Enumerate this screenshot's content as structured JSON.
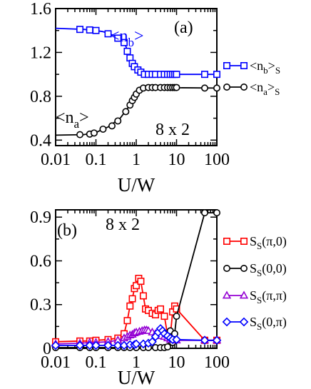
{
  "chart_data": [
    {
      "type": "line",
      "panel_label": "(a)",
      "annotation": "8 x 2",
      "inline_labels": [
        {
          "series": "nb",
          "text": "<n",
          "sub": "b",
          "tail": ">",
          "color": "#0000ff"
        },
        {
          "series": "na",
          "text": "<n",
          "sub": "a",
          "tail": ">",
          "color": "#000000"
        }
      ],
      "xlabel": "U/W",
      "xscale": "log",
      "xlim": [
        0.01,
        100
      ],
      "ylim": [
        0.35,
        1.6
      ],
      "xticks": [
        0.01,
        0.1,
        1,
        10,
        100
      ],
      "xtick_labels": [
        "0.01",
        "0.1",
        "1",
        "10",
        "100"
      ],
      "yticks": [
        0.4,
        0.8,
        1.2,
        1.6
      ],
      "ytick_labels": [
        "0.4",
        "0.8",
        "1.2",
        "1.6"
      ],
      "legend_placement": "outside-right",
      "series": [
        {
          "key": "nb",
          "name": "<n",
          "name_sub": "b",
          "name_tail": ">",
          "name_sub2": "S",
          "color": "#0000ff",
          "marker": "square",
          "marker_fill": "none",
          "line": [
            [
              0.01,
              1.42
            ],
            [
              0.05,
              1.41
            ],
            [
              0.08,
              1.405
            ],
            [
              0.15,
              1.39
            ],
            [
              0.3,
              1.35
            ],
            [
              0.5,
              1.29
            ],
            [
              0.7,
              1.17
            ],
            [
              1.0,
              1.06
            ],
            [
              1.5,
              1.01
            ],
            [
              3,
              1.0
            ],
            [
              100,
              1.0
            ]
          ],
          "markers": [
            [
              0.04,
              1.41
            ],
            [
              0.07,
              1.405
            ],
            [
              0.1,
              1.4
            ],
            [
              0.2,
              1.37
            ],
            [
              0.35,
              1.33
            ],
            [
              0.5,
              1.29
            ],
            [
              0.6,
              1.21
            ],
            [
              0.7,
              1.15
            ],
            [
              0.8,
              1.1
            ],
            [
              0.9,
              1.07
            ],
            [
              1.1,
              1.04
            ],
            [
              1.3,
              1.02
            ],
            [
              1.6,
              1.0
            ],
            [
              2.0,
              1.0
            ],
            [
              2.5,
              1.0
            ],
            [
              3.0,
              1.0
            ],
            [
              4.0,
              1.0
            ],
            [
              5.0,
              1.0
            ],
            [
              6.0,
              1.0
            ],
            [
              7.0,
              1.0
            ],
            [
              8.0,
              1.0
            ],
            [
              9.0,
              1.0
            ],
            [
              10,
              1.0
            ],
            [
              50,
              1.0
            ],
            [
              100,
              1.0
            ]
          ]
        },
        {
          "key": "na",
          "name": "<n",
          "name_sub": "a",
          "name_tail": ">",
          "name_sub2": "S",
          "color": "#000000",
          "marker": "circle",
          "marker_fill": "none",
          "line": [
            [
              0.01,
              0.445
            ],
            [
              0.05,
              0.45
            ],
            [
              0.1,
              0.47
            ],
            [
              0.2,
              0.52
            ],
            [
              0.4,
              0.6
            ],
            [
              0.7,
              0.72
            ],
            [
              1.0,
              0.82
            ],
            [
              1.5,
              0.87
            ],
            [
              2.5,
              0.88
            ],
            [
              100,
              0.875
            ]
          ],
          "markers": [
            [
              0.04,
              0.45
            ],
            [
              0.07,
              0.455
            ],
            [
              0.09,
              0.465
            ],
            [
              0.15,
              0.5
            ],
            [
              0.25,
              0.53
            ],
            [
              0.35,
              0.575
            ],
            [
              0.55,
              0.66
            ],
            [
              0.7,
              0.72
            ],
            [
              0.8,
              0.76
            ],
            [
              0.9,
              0.79
            ],
            [
              1.0,
              0.82
            ],
            [
              1.2,
              0.855
            ],
            [
              1.5,
              0.875
            ],
            [
              2.0,
              0.88
            ],
            [
              2.5,
              0.88
            ],
            [
              3.0,
              0.88
            ],
            [
              4.0,
              0.88
            ],
            [
              5.0,
              0.88
            ],
            [
              6.0,
              0.88
            ],
            [
              7.0,
              0.88
            ],
            [
              8.0,
              0.88
            ],
            [
              9.0,
              0.88
            ],
            [
              10,
              0.88
            ],
            [
              50,
              0.875
            ],
            [
              100,
              0.875
            ]
          ]
        }
      ]
    },
    {
      "type": "line",
      "panel_label": "(b)",
      "annotation": "8 x 2",
      "xlabel": "U/W",
      "xscale": "log",
      "xlim": [
        0.01,
        100
      ],
      "ylim": [
        0,
        0.95
      ],
      "xticks": [
        0.01,
        0.1,
        1,
        10,
        100
      ],
      "xtick_labels": [
        "0.01",
        "0.1",
        "1",
        "10",
        "100"
      ],
      "yticks": [
        0,
        0.3,
        0.6,
        0.9
      ],
      "ytick_labels": [
        "0",
        "0.3",
        "0.6",
        "0.9"
      ],
      "legend_placement": "outside-right",
      "series": [
        {
          "key": "s_pi0",
          "name": "S",
          "name_sub": "S",
          "name_tail": "(π,0)",
          "color": "#ff0000",
          "marker": "square",
          "marker_fill": "none",
          "points": [
            [
              0.01,
              0.045
            ],
            [
              0.04,
              0.05
            ],
            [
              0.07,
              0.05
            ],
            [
              0.1,
              0.055
            ],
            [
              0.2,
              0.06
            ],
            [
              0.35,
              0.07
            ],
            [
              0.5,
              0.1
            ],
            [
              0.6,
              0.19
            ],
            [
              0.7,
              0.29
            ],
            [
              0.8,
              0.34
            ],
            [
              0.9,
              0.41
            ],
            [
              1.0,
              0.43
            ],
            [
              1.15,
              0.48
            ],
            [
              1.3,
              0.46
            ],
            [
              1.5,
              0.36
            ],
            [
              1.7,
              0.27
            ],
            [
              2.0,
              0.26
            ],
            [
              2.5,
              0.24
            ],
            [
              3.0,
              0.23
            ],
            [
              3.5,
              0.26
            ],
            [
              4.0,
              0.27
            ],
            [
              5.0,
              0.22
            ],
            [
              6.0,
              0.09
            ],
            [
              7.0,
              0.08
            ],
            [
              8.0,
              0.25
            ],
            [
              9.0,
              0.29
            ],
            [
              10,
              0.27
            ],
            [
              50,
              0.055
            ],
            [
              100,
              0.055
            ]
          ]
        },
        {
          "key": "s_00",
          "name": "S",
          "name_sub": "S",
          "name_tail": "(0,0)",
          "color": "#000000",
          "marker": "circle",
          "marker_fill": "none",
          "points": [
            [
              0.01,
              0.005
            ],
            [
              0.04,
              0.005
            ],
            [
              0.07,
              0.005
            ],
            [
              0.1,
              0.005
            ],
            [
              0.2,
              0.005
            ],
            [
              0.35,
              0.005
            ],
            [
              0.5,
              0.005
            ],
            [
              0.7,
              0.005
            ],
            [
              1.0,
              0.005
            ],
            [
              1.5,
              0.005
            ],
            [
              2.0,
              0.005
            ],
            [
              3.0,
              0.005
            ],
            [
              4.0,
              0.005
            ],
            [
              5.0,
              0.005
            ],
            [
              6.0,
              0.01
            ],
            [
              7.0,
              0.12
            ],
            [
              8.0,
              0.04
            ],
            [
              9.0,
              0.1
            ],
            [
              10,
              0.22
            ],
            [
              50,
              0.93
            ],
            [
              100,
              0.93
            ]
          ]
        },
        {
          "key": "s_pipi",
          "name": "S",
          "name_sub": "S",
          "name_tail": "(π,π)",
          "color": "#9400d3",
          "marker": "triangle",
          "marker_fill": "none",
          "points": [
            [
              0.01,
              0.03
            ],
            [
              0.04,
              0.035
            ],
            [
              0.07,
              0.04
            ],
            [
              0.1,
              0.04
            ],
            [
              0.2,
              0.045
            ],
            [
              0.35,
              0.055
            ],
            [
              0.5,
              0.07
            ],
            [
              0.6,
              0.08
            ],
            [
              0.7,
              0.09
            ],
            [
              0.8,
              0.095
            ],
            [
              0.9,
              0.105
            ],
            [
              1.0,
              0.11
            ],
            [
              1.2,
              0.115
            ],
            [
              1.4,
              0.12
            ],
            [
              1.6,
              0.125
            ],
            [
              1.8,
              0.125
            ],
            [
              2.0,
              0.12
            ],
            [
              2.5,
              0.11
            ],
            [
              3.0,
              0.1
            ],
            [
              3.5,
              0.09
            ],
            [
              4.0,
              0.085
            ],
            [
              5.0,
              0.08
            ],
            [
              6.0,
              0.07
            ],
            [
              7.0,
              0.06
            ],
            [
              8.0,
              0.06
            ],
            [
              10,
              0.055
            ],
            [
              50,
              0.055
            ],
            [
              100,
              0.055
            ]
          ]
        },
        {
          "key": "s_0pi",
          "name": "S",
          "name_sub": "S",
          "name_tail": "(0,π)",
          "color": "#0000ff",
          "marker": "diamond",
          "marker_fill": "none",
          "points": [
            [
              0.01,
              0.02
            ],
            [
              0.04,
              0.02
            ],
            [
              0.07,
              0.02
            ],
            [
              0.1,
              0.02
            ],
            [
              0.2,
              0.02
            ],
            [
              0.35,
              0.02
            ],
            [
              0.5,
              0.02
            ],
            [
              0.7,
              0.025
            ],
            [
              0.9,
              0.025
            ],
            [
              1.0,
              0.03
            ],
            [
              1.5,
              0.03
            ],
            [
              2.0,
              0.035
            ],
            [
              2.5,
              0.045
            ],
            [
              3.0,
              0.08
            ],
            [
              3.5,
              0.11
            ],
            [
              4.0,
              0.135
            ],
            [
              4.5,
              0.12
            ],
            [
              5.0,
              0.1
            ],
            [
              6.0,
              0.085
            ],
            [
              7.0,
              0.07
            ],
            [
              8.0,
              0.06
            ],
            [
              10,
              0.06
            ],
            [
              50,
              0.055
            ],
            [
              100,
              0.055
            ]
          ]
        }
      ]
    }
  ]
}
